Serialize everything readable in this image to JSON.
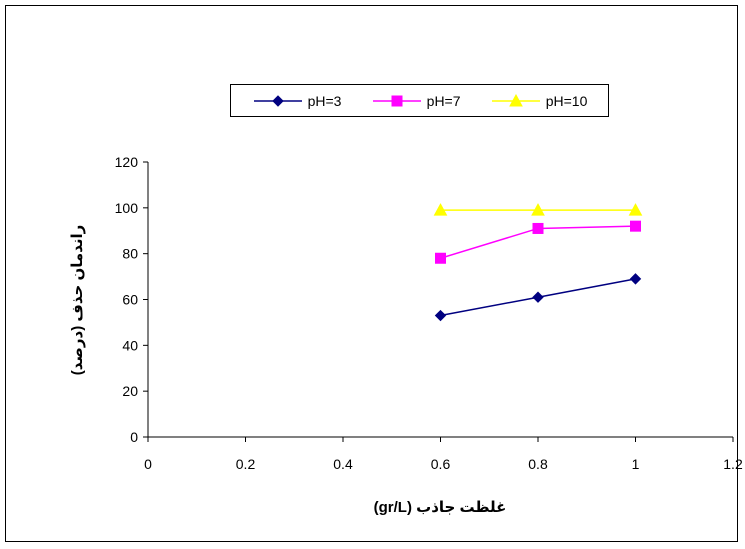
{
  "chart_data": {
    "type": "line",
    "title": "",
    "xlabel": "غلظت جاذب (gr/L)",
    "ylabel": "راندمان حذف (درصد)",
    "xlim": [
      0,
      1.2
    ],
    "ylim": [
      0,
      120
    ],
    "xticks": [
      "0",
      "0.2",
      "0.4",
      "0.6",
      "0.8",
      "1",
      "1.2"
    ],
    "yticks": [
      "0",
      "20",
      "40",
      "60",
      "80",
      "100",
      "120"
    ],
    "x": [
      0.6,
      0.8,
      1.0
    ],
    "series": [
      {
        "name": "pH=3",
        "values": [
          53,
          61,
          69
        ],
        "color": "#000080",
        "marker": "diamond"
      },
      {
        "name": "pH=7",
        "values": [
          78,
          91,
          92
        ],
        "color": "#ff00ff",
        "marker": "square"
      },
      {
        "name": "pH=10",
        "values": [
          99,
          99,
          99
        ],
        "color": "#ffff00",
        "marker": "triangle"
      }
    ],
    "grid": false,
    "legend_position": "top"
  }
}
